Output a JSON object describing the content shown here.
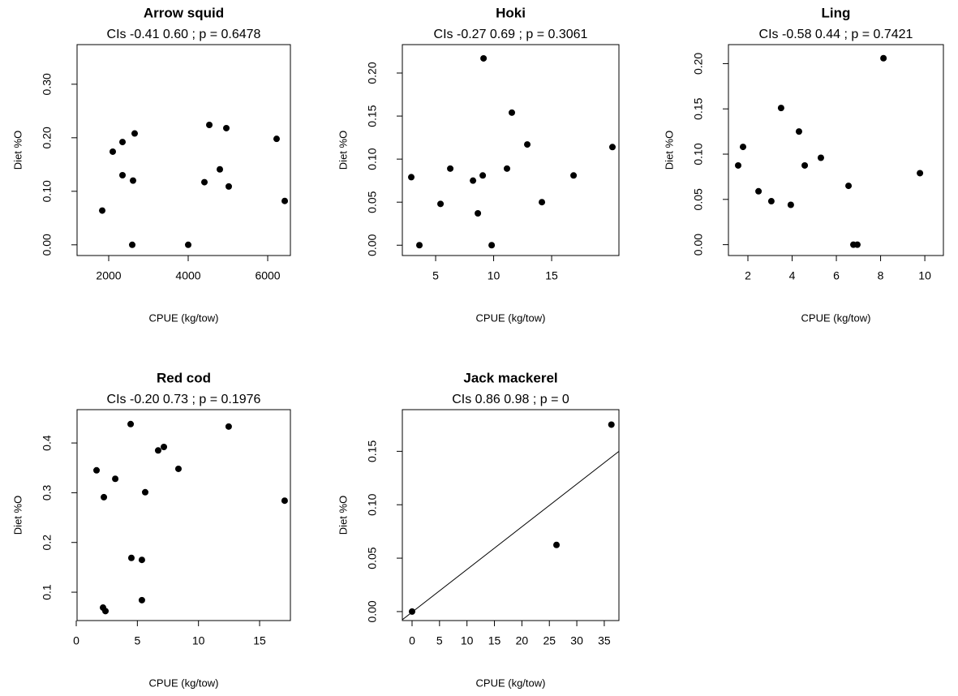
{
  "chart_data": [
    {
      "type": "scatter",
      "title": "Arrow squid",
      "subtitle": "CIs -0.41 0.60 ; p = 0.6478",
      "xlabel": "CPUE (kg/tow)",
      "ylabel": "Diet %O",
      "x": [
        1837,
        2102,
        2347,
        2347,
        2653,
        2612,
        2592,
        4000,
        4408,
        4531,
        4796,
        4959,
        5020,
        6224,
        6429
      ],
      "y": [
        0.064,
        0.174,
        0.192,
        0.13,
        0.208,
        0.12,
        0,
        0,
        0.117,
        0.224,
        0.141,
        0.218,
        0.109,
        0.198,
        0.082
      ],
      "color": "#000000",
      "xlim": [
        1204,
        6571
      ],
      "ylim": [
        -0.02,
        0.374
      ],
      "xticks": [
        2000,
        4000,
        6000
      ],
      "yticks": [
        {
          "value": 0,
          "label": "0.00"
        },
        {
          "value": 0.1,
          "label": "0.10"
        },
        {
          "value": 0.2,
          "label": "0.20"
        },
        {
          "value": 0.3,
          "label": "0.30"
        }
      ]
    },
    {
      "type": "scatter",
      "title": "Hoki",
      "subtitle": "CIs -0.27 0.69 ; p = 0.3061",
      "xlabel": "CPUE (kg/tow)",
      "ylabel": "Diet %O",
      "x": [
        2.9,
        3.6,
        5.42,
        6.26,
        8.22,
        8.64,
        9.06,
        9.13,
        9.83,
        11.15,
        11.57,
        12.9,
        14.16,
        16.89,
        20.24
      ],
      "y": [
        0.079,
        0,
        0.048,
        0.089,
        0.075,
        0.037,
        0.081,
        0.217,
        0,
        0.089,
        0.154,
        0.117,
        0.05,
        0.081,
        0.114
      ],
      "color": "#000000",
      "xlim": [
        2.13,
        20.8
      ],
      "ylim": [
        -0.012,
        0.233
      ],
      "xticks": [
        5,
        10,
        15
      ],
      "yticks": [
        {
          "value": 0,
          "label": "0.00"
        },
        0.05,
        {
          "value": 0.1,
          "label": "0.10"
        },
        0.15,
        {
          "value": 0.2,
          "label": "0.20"
        }
      ]
    },
    {
      "type": "scatter",
      "title": "Ling",
      "subtitle": "CIs -0.58 0.44 ; p = 0.7421",
      "xlabel": "CPUE (kg/tow)",
      "ylabel": "Diet %O",
      "x": [
        1.56,
        1.78,
        2.48,
        3.06,
        3.5,
        3.94,
        4.31,
        4.57,
        5.3,
        6.55,
        6.77,
        6.95,
        8.13,
        9.78
      ],
      "y": [
        0.0875,
        0.108,
        0.059,
        0.048,
        0.151,
        0.044,
        0.125,
        0.0875,
        0.096,
        0.065,
        0,
        0,
        0.206,
        0.079
      ],
      "color": "#000000",
      "xlim": [
        1.12,
        10.84
      ],
      "ylim": [
        -0.012,
        0.221
      ],
      "xticks": [
        2,
        4,
        6,
        8,
        10
      ],
      "yticks": [
        {
          "value": 0,
          "label": "0.00"
        },
        0.05,
        {
          "value": 0.1,
          "label": "0.10"
        },
        0.15,
        {
          "value": 0.2,
          "label": "0.20"
        }
      ]
    },
    {
      "type": "scatter",
      "title": "Red cod",
      "subtitle": "CIs -0.20 0.73 ; p = 0.1976",
      "xlabel": "CPUE (kg/tow)",
      "ylabel": "Diet %O",
      "x": [
        1.66,
        2.26,
        2.19,
        2.39,
        3.19,
        4.45,
        4.51,
        5.37,
        5.37,
        5.64,
        6.7,
        7.17,
        8.36,
        12.47,
        17.05
      ],
      "y": [
        0.345,
        0.291,
        0.069,
        0.062,
        0.328,
        0.438,
        0.169,
        0.165,
        0.084,
        0.301,
        0.385,
        0.392,
        0.348,
        0.433,
        0.284
      ],
      "color": "#000000",
      "xlim": [
        0.066,
        17.52
      ],
      "ylim": [
        0.043,
        0.467
      ],
      "xticks": [
        0,
        5,
        10,
        15
      ],
      "yticks": [
        0.1,
        0.2,
        0.3,
        0.4
      ]
    },
    {
      "type": "scatter",
      "title": "Jack mackerel",
      "subtitle": "CIs 0.86 0.98 ; p = 0",
      "xlabel": "CPUE (kg/tow)",
      "ylabel": "Diet %O",
      "x": [
        0,
        26.3,
        36.3
      ],
      "y": [
        0,
        0.0624,
        0.175
      ],
      "fit_line": {
        "x": [
          -1.77,
          37.67
        ],
        "y": [
          -0.0076,
          0.15
        ]
      },
      "color": "#000000",
      "xlim": [
        -1.77,
        37.67
      ],
      "ylim": [
        -0.0084,
        0.189
      ],
      "xticks": [
        0,
        5,
        10,
        15,
        20,
        25,
        30,
        35
      ],
      "yticks": [
        {
          "value": 0,
          "label": "0.00"
        },
        0.05,
        {
          "value": 0.1,
          "label": "0.10"
        },
        0.15
      ]
    }
  ]
}
